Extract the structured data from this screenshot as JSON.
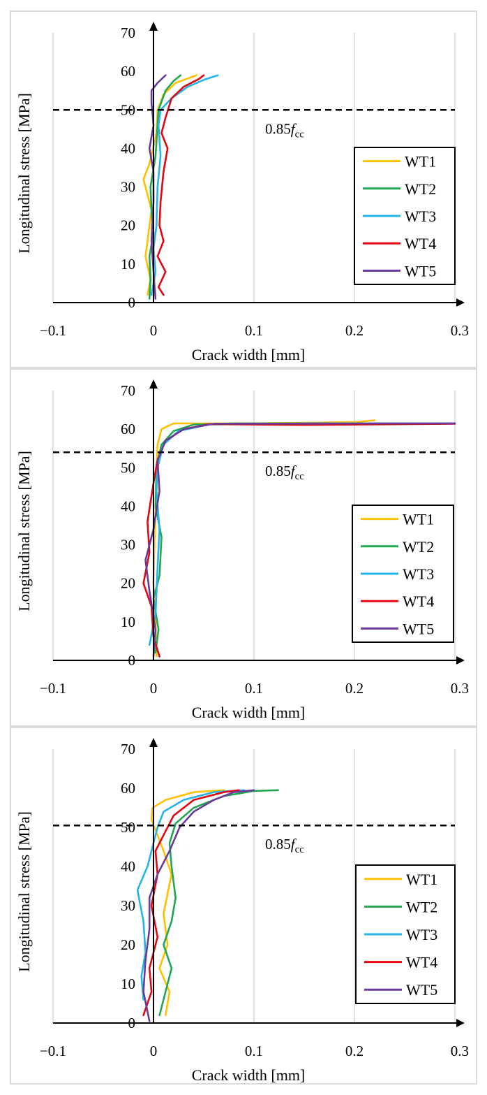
{
  "colors": {
    "WT1": "#ffc000",
    "WT2": "#21a651",
    "WT3": "#25b4e8",
    "WT4": "#e30613",
    "WT5": "#6a3a9b",
    "grid": "#d9d9d9",
    "axis": "#000000",
    "reference": "#000000"
  },
  "chart_data": [
    {
      "type": "line",
      "xlabel": "Crack width [mm]",
      "ylabel": "Longitudinal stress [MPa]",
      "xlim": [
        -0.1,
        0.3
      ],
      "ylim": [
        0,
        70
      ],
      "x_ticks": [
        "−0.1",
        "0",
        "0.1",
        "0.2",
        "0.3"
      ],
      "y_ticks": [
        "0",
        "10",
        "20",
        "30",
        "40",
        "50",
        "60",
        "70"
      ],
      "grid": "vertical",
      "legend": {
        "position": "right",
        "entries": [
          "WT1",
          "WT2",
          "WT3",
          "WT4",
          "WT5"
        ]
      },
      "reference_line": {
        "y": 50,
        "label_prefix": "0.85",
        "label_var": "f",
        "label_sub": "cc"
      },
      "series": [
        {
          "name": "WT1",
          "points": [
            [
              -0.006,
              2
            ],
            [
              -0.003,
              6
            ],
            [
              -0.008,
              12
            ],
            [
              -0.006,
              16
            ],
            [
              -0.002,
              24
            ],
            [
              -0.01,
              32
            ],
            [
              -0.004,
              36
            ],
            [
              0.003,
              44
            ],
            [
              0.004,
              50
            ],
            [
              0.01,
              54
            ],
            [
              0.022,
              57
            ],
            [
              0.043,
              59
            ]
          ]
        },
        {
          "name": "WT2",
          "points": [
            [
              -0.004,
              1
            ],
            [
              -0.003,
              6
            ],
            [
              -0.004,
              12
            ],
            [
              0.0,
              18
            ],
            [
              -0.002,
              24
            ],
            [
              -0.003,
              30
            ],
            [
              0.002,
              38
            ],
            [
              0.004,
              46
            ],
            [
              0.005,
              50
            ],
            [
              0.012,
              55
            ],
            [
              0.02,
              57.5
            ],
            [
              0.027,
              59
            ]
          ]
        },
        {
          "name": "WT3",
          "points": [
            [
              -0.002,
              2
            ],
            [
              0.002,
              8
            ],
            [
              0.0,
              14
            ],
            [
              0.003,
              20
            ],
            [
              0.004,
              30
            ],
            [
              0.007,
              38
            ],
            [
              0.005,
              46
            ],
            [
              0.007,
              50
            ],
            [
              0.018,
              53
            ],
            [
              0.034,
              56
            ],
            [
              0.052,
              58
            ],
            [
              0.064,
              59
            ]
          ]
        },
        {
          "name": "WT4",
          "points": [
            [
              0.01,
              2
            ],
            [
              0.005,
              4
            ],
            [
              0.012,
              8
            ],
            [
              0.004,
              12
            ],
            [
              0.01,
              16
            ],
            [
              0.006,
              20
            ],
            [
              0.007,
              26
            ],
            [
              0.01,
              34
            ],
            [
              0.014,
              40
            ],
            [
              0.008,
              44
            ],
            [
              0.012,
              48
            ],
            [
              0.018,
              53
            ],
            [
              0.03,
              56
            ],
            [
              0.045,
              58
            ],
            [
              0.05,
              59
            ]
          ]
        },
        {
          "name": "WT5",
          "points": [
            [
              0.002,
              1
            ],
            [
              0.0,
              8
            ],
            [
              -0.002,
              16
            ],
            [
              0.0,
              26
            ],
            [
              0.0,
              34
            ],
            [
              -0.004,
              40
            ],
            [
              0.0,
              46
            ],
            [
              -0.002,
              52
            ],
            [
              -0.002,
              55
            ],
            [
              0.004,
              57
            ],
            [
              0.012,
              59
            ]
          ]
        }
      ]
    },
    {
      "type": "line",
      "xlabel": "Crack width [mm]",
      "ylabel": "Longitudinal stress [MPa]",
      "xlim": [
        -0.1,
        0.3
      ],
      "ylim": [
        0,
        70
      ],
      "x_ticks": [
        "−0.1",
        "0",
        "0.1",
        "0.2",
        "0.3"
      ],
      "y_ticks": [
        "0",
        "10",
        "20",
        "30",
        "40",
        "50",
        "60",
        "70"
      ],
      "grid": "vertical",
      "legend": {
        "position": "right",
        "entries": [
          "WT1",
          "WT2",
          "WT3",
          "WT4",
          "WT5"
        ]
      },
      "reference_line": {
        "y": 54,
        "label_prefix": "0.85",
        "label_var": "f",
        "label_sub": "cc"
      },
      "series": [
        {
          "name": "WT1",
          "points": [
            [
              0.003,
              1
            ],
            [
              0.002,
              10
            ],
            [
              0.0,
              20
            ],
            [
              0.001,
              30
            ],
            [
              0.002,
              40
            ],
            [
              0.003,
              50
            ],
            [
              0.004,
              56
            ],
            [
              0.008,
              60
            ],
            [
              0.02,
              61.5
            ],
            [
              0.05,
              61.5
            ],
            [
              0.1,
              61.5
            ],
            [
              0.2,
              61.8
            ],
            [
              0.22,
              62.3
            ]
          ]
        },
        {
          "name": "WT2",
          "points": [
            [
              0.002,
              2
            ],
            [
              0.005,
              8
            ],
            [
              0.0,
              16
            ],
            [
              0.006,
              22
            ],
            [
              0.008,
              32
            ],
            [
              0.002,
              40
            ],
            [
              0.003,
              50
            ],
            [
              0.008,
              56
            ],
            [
              0.02,
              59.5
            ],
            [
              0.04,
              61.2
            ],
            [
              0.08,
              61.5
            ],
            [
              0.2,
              61.5
            ],
            [
              0.3,
              61.5
            ]
          ]
        },
        {
          "name": "WT3",
          "points": [
            [
              -0.004,
              4
            ],
            [
              0.002,
              12
            ],
            [
              0.004,
              24
            ],
            [
              0.006,
              34
            ],
            [
              0.003,
              44
            ],
            [
              0.004,
              50
            ],
            [
              0.01,
              56
            ],
            [
              0.025,
              59.5
            ],
            [
              0.055,
              61.2
            ],
            [
              0.15,
              61.5
            ],
            [
              0.3,
              61.5
            ]
          ]
        },
        {
          "name": "WT4",
          "points": [
            [
              0.006,
              1
            ],
            [
              0.0,
              6
            ],
            [
              -0.002,
              14
            ],
            [
              -0.01,
              20
            ],
            [
              -0.004,
              28
            ],
            [
              -0.006,
              36
            ],
            [
              0.0,
              46
            ],
            [
              0.004,
              52
            ],
            [
              0.012,
              57
            ],
            [
              0.03,
              60
            ],
            [
              0.055,
              61.3
            ],
            [
              0.15,
              61.1
            ],
            [
              0.3,
              61.4
            ]
          ]
        },
        {
          "name": "WT5",
          "points": [
            [
              0.0,
              1
            ],
            [
              0.002,
              8
            ],
            [
              -0.004,
              18
            ],
            [
              -0.008,
              26
            ],
            [
              0.0,
              34
            ],
            [
              0.006,
              44
            ],
            [
              0.004,
              52
            ],
            [
              0.012,
              57
            ],
            [
              0.03,
              60
            ],
            [
              0.06,
              61.4
            ],
            [
              0.3,
              61.5
            ]
          ]
        }
      ]
    },
    {
      "type": "line",
      "xlabel": "Crack width [mm]",
      "ylabel": "Longitudinal stress [MPa]",
      "xlim": [
        -0.1,
        0.3
      ],
      "ylim": [
        0,
        70
      ],
      "x_ticks": [
        "−0.1",
        "0",
        "0.1",
        "0.2",
        "0.3"
      ],
      "y_ticks": [
        "0",
        "10",
        "20",
        "30",
        "40",
        "50",
        "60",
        "70"
      ],
      "grid": "vertical",
      "legend": {
        "position": "right",
        "entries": [
          "WT1",
          "WT2",
          "WT3",
          "WT4",
          "WT5"
        ]
      },
      "reference_line": {
        "y": 50.5,
        "label_prefix": "0.85",
        "label_var": "f",
        "label_sub": "cc"
      },
      "series": [
        {
          "name": "WT1",
          "points": [
            [
              0.012,
              2
            ],
            [
              0.016,
              8
            ],
            [
              0.006,
              14
            ],
            [
              0.014,
              20
            ],
            [
              0.01,
              28
            ],
            [
              0.018,
              38
            ],
            [
              0.01,
              44
            ],
            [
              0.004,
              48
            ],
            [
              -0.002,
              52
            ],
            [
              -0.001,
              55
            ],
            [
              0.012,
              57
            ],
            [
              0.04,
              59
            ],
            [
              0.07,
              59.5
            ]
          ]
        },
        {
          "name": "WT2",
          "points": [
            [
              0.006,
              2
            ],
            [
              0.012,
              8
            ],
            [
              0.018,
              14
            ],
            [
              0.01,
              20
            ],
            [
              0.018,
              26
            ],
            [
              0.022,
              32
            ],
            [
              0.018,
              40
            ],
            [
              0.016,
              46
            ],
            [
              0.022,
              51
            ],
            [
              0.04,
              55
            ],
            [
              0.07,
              58
            ],
            [
              0.1,
              59.3
            ],
            [
              0.124,
              59.5
            ]
          ]
        },
        {
          "name": "WT3",
          "points": [
            [
              -0.01,
              6
            ],
            [
              -0.012,
              12
            ],
            [
              -0.008,
              18
            ],
            [
              -0.01,
              26
            ],
            [
              -0.016,
              34
            ],
            [
              -0.006,
              40
            ],
            [
              0.0,
              46
            ],
            [
              0.004,
              50
            ],
            [
              0.01,
              54
            ],
            [
              0.03,
              57
            ],
            [
              0.06,
              59
            ],
            [
              0.09,
              59.5
            ]
          ]
        },
        {
          "name": "WT4",
          "points": [
            [
              -0.01,
              2
            ],
            [
              -0.002,
              8
            ],
            [
              -0.004,
              14
            ],
            [
              0.004,
              22
            ],
            [
              -0.002,
              30
            ],
            [
              0.004,
              38
            ],
            [
              0.002,
              44
            ],
            [
              0.01,
              48
            ],
            [
              0.02,
              53
            ],
            [
              0.04,
              57
            ],
            [
              0.07,
              59
            ],
            [
              0.085,
              59.5
            ]
          ]
        },
        {
          "name": "WT5",
          "points": [
            [
              -0.004,
              0.5
            ],
            [
              -0.01,
              8
            ],
            [
              -0.008,
              16
            ],
            [
              -0.004,
              24
            ],
            [
              -0.004,
              32
            ],
            [
              0.004,
              38
            ],
            [
              0.016,
              44
            ],
            [
              0.026,
              50
            ],
            [
              0.04,
              54
            ],
            [
              0.06,
              57
            ],
            [
              0.08,
              59
            ],
            [
              0.1,
              59.5
            ]
          ]
        }
      ]
    }
  ]
}
